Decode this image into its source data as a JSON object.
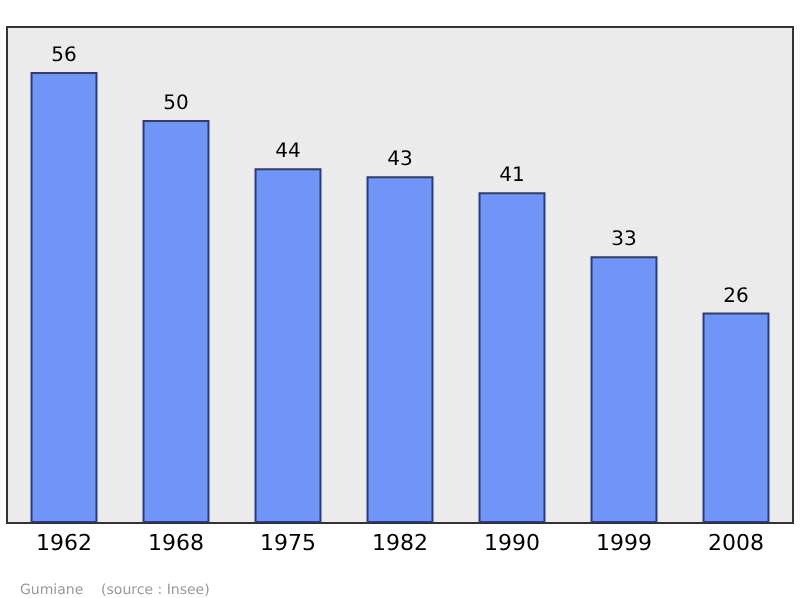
{
  "chart_data": {
    "type": "bar",
    "categories": [
      "1962",
      "1968",
      "1975",
      "1982",
      "1990",
      "1999",
      "2008"
    ],
    "values": [
      56,
      50,
      44,
      43,
      41,
      33,
      26
    ],
    "color": "#6f95f8",
    "data_labels": true,
    "grid": false,
    "legend": false,
    "tick_labels": "x",
    "annotations": [
      "Gumiane    (source : Insee)"
    ]
  }
}
